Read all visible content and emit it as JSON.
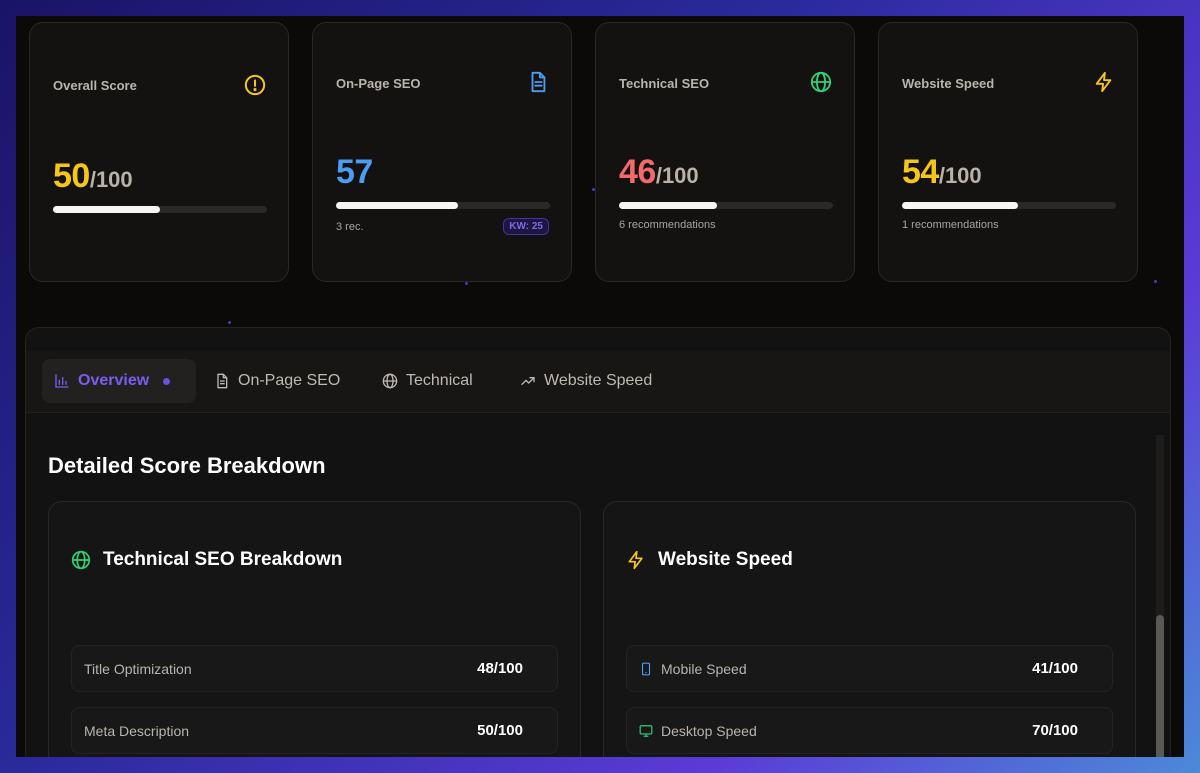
{
  "cards": [
    {
      "title": "Overall Score",
      "icon": "alert-circle-icon",
      "score": "50",
      "denominator": "/100",
      "progress": 0.5,
      "color": "#f5c518"
    },
    {
      "title": "On-Page SEO",
      "icon": "document-icon",
      "score": "57",
      "denominator": "",
      "progress": 0.57,
      "color": "#4b9cf5",
      "recommendations": "3 rec.",
      "keyword_badge": "KW: 25"
    },
    {
      "title": "Technical SEO",
      "icon": "globe-icon",
      "score": "46",
      "denominator": "/100",
      "progress": 0.46,
      "color": "#f26a6a",
      "recommendations": "6 recommendations"
    },
    {
      "title": "Website Speed",
      "icon": "lightning-icon",
      "score": "54",
      "denominator": "/100",
      "progress": 0.54,
      "color": "#f5c518",
      "recommendations": "1 recommendations"
    }
  ],
  "tabs": [
    {
      "label": "Overview",
      "icon": "bar-chart-icon",
      "active": true
    },
    {
      "label": "On-Page SEO",
      "icon": "document-icon",
      "active": false
    },
    {
      "label": "Technical",
      "icon": "globe-icon",
      "active": false
    },
    {
      "label": "Website Speed",
      "icon": "trending-up-icon",
      "active": false
    }
  ],
  "section_title": "Detailed Score Breakdown",
  "technical_breakdown": {
    "title": "Technical SEO Breakdown",
    "icon": "globe-icon",
    "rows": [
      {
        "label": "Title Optimization",
        "value": "48/100"
      },
      {
        "label": "Meta Description",
        "value": "50/100"
      }
    ]
  },
  "speed_breakdown": {
    "title": "Website Speed",
    "icon": "lightning-icon",
    "rows": [
      {
        "label": "Mobile Speed",
        "value": "41/100",
        "icon": "smartphone-icon"
      },
      {
        "label": "Desktop Speed",
        "value": "70/100",
        "icon": "monitor-icon"
      }
    ]
  },
  "colors": {
    "accent": "#7a5cf0",
    "green": "#2fd07a",
    "yellow": "#f5c518",
    "blue": "#4b9cf5",
    "red": "#f26a6a"
  }
}
